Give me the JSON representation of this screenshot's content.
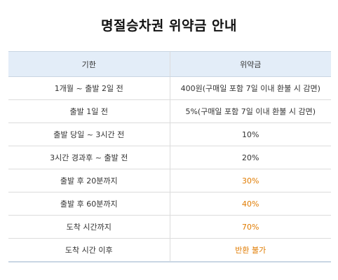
{
  "page": {
    "title": "명절승차권 위약금 안내"
  },
  "table": {
    "headers": [
      "기한",
      "위약금"
    ],
    "rows": [
      {
        "period": "1개월 ~ 출발 2일 전",
        "penalty": "400원(구매일 포함 7일 이내 환불 시 감면)",
        "highlight": false
      },
      {
        "period": "출발 1일 전",
        "penalty": "5%(구매일 포함 7일 이내 환불 시 감면)",
        "highlight": false
      },
      {
        "period": "출발 당일 ~ 3시간 전",
        "penalty": "10%",
        "highlight": false
      },
      {
        "period": "3시간 경과후 ~ 출발 전",
        "penalty": "20%",
        "highlight": false
      },
      {
        "period": "출발 후 20분까지",
        "penalty": "30%",
        "highlight": true
      },
      {
        "period": "출발 후 60분까지",
        "penalty": "40%",
        "highlight": true
      },
      {
        "period": "도착 시간까지",
        "penalty": "70%",
        "highlight": true
      },
      {
        "period": "도착 시간 이후",
        "penalty": "반환 불가",
        "highlight": true
      }
    ]
  },
  "colors": {
    "header_bg": "#e3edf8",
    "highlight_text": "#e07b00",
    "border": "#dcdcdc"
  }
}
